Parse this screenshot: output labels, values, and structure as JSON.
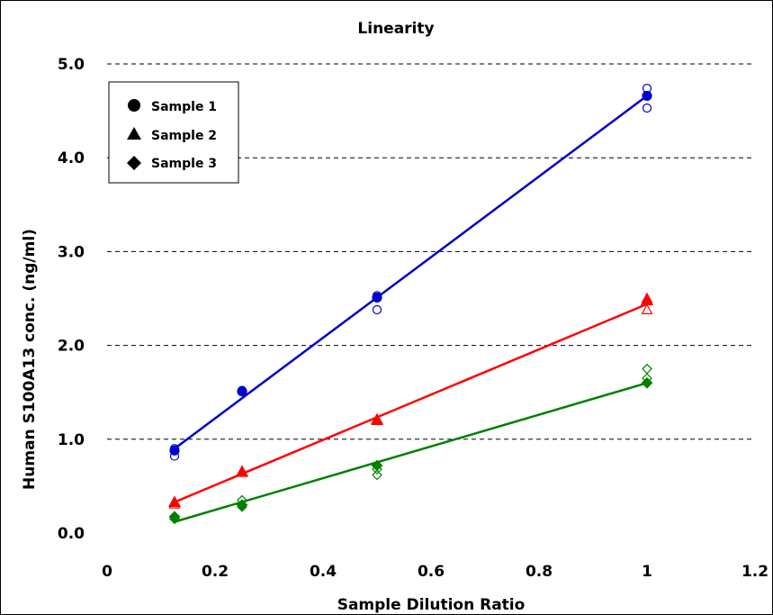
{
  "chart_data": {
    "type": "scatter",
    "title": "Linearity",
    "xlabel": "Sample Dilution Ratio",
    "ylabel": "Human S100A13 conc. (ng/ml)",
    "xlim": [
      0,
      1.2
    ],
    "ylim": [
      0,
      5.0
    ],
    "x_ticks": [
      0,
      0.2,
      0.4,
      0.6,
      0.8,
      1,
      1.2
    ],
    "x_tick_labels": [
      "0",
      "0.2",
      "0.4",
      "0.6",
      "0.8",
      "1",
      "1.2"
    ],
    "y_ticks": [
      0,
      1,
      2,
      3,
      4,
      5
    ],
    "y_tick_labels": [
      "0.0",
      "1.0",
      "2.0",
      "3.0",
      "4.0",
      "5.0"
    ],
    "grid": "horizontal dashed",
    "legend_position": "top-left",
    "series": [
      {
        "name": "Sample 1",
        "marker": "circle",
        "color": "#0000cc",
        "mean": [
          [
            0.125,
            0.88
          ],
          [
            0.25,
            1.51
          ],
          [
            0.5,
            2.51
          ],
          [
            1,
            4.66
          ]
        ],
        "replicates": [
          [
            0.125,
            0.9
          ],
          [
            0.125,
            0.82
          ],
          [
            0.25,
            1.52
          ],
          [
            0.5,
            2.53
          ],
          [
            0.5,
            2.38
          ],
          [
            1,
            4.74
          ],
          [
            1,
            4.53
          ]
        ],
        "fit": [
          [
            0.125,
            0.9
          ],
          [
            1,
            4.66
          ]
        ]
      },
      {
        "name": "Sample 2",
        "marker": "triangle",
        "color": "#ff0000",
        "mean": [
          [
            0.125,
            0.33
          ],
          [
            0.25,
            0.65
          ],
          [
            0.5,
            1.21
          ],
          [
            1,
            2.48
          ]
        ],
        "replicates": [
          [
            0.125,
            0.31
          ],
          [
            0.25,
            0.66
          ],
          [
            0.5,
            1.2
          ],
          [
            1,
            2.5
          ],
          [
            1,
            2.38
          ]
        ],
        "fit": [
          [
            0.125,
            0.33
          ],
          [
            1,
            2.44
          ]
        ]
      },
      {
        "name": "Sample 3",
        "marker": "diamond",
        "color": "#008000",
        "mean": [
          [
            0.125,
            0.17
          ],
          [
            0.25,
            0.3
          ],
          [
            0.5,
            0.72
          ],
          [
            1,
            1.6
          ]
        ],
        "replicates": [
          [
            0.125,
            0.18
          ],
          [
            0.125,
            0.15
          ],
          [
            0.25,
            0.35
          ],
          [
            0.25,
            0.28
          ],
          [
            0.5,
            0.68
          ],
          [
            0.5,
            0.62
          ],
          [
            1,
            1.75
          ],
          [
            1,
            1.65
          ]
        ],
        "fit": [
          [
            0.125,
            0.12
          ],
          [
            1,
            1.6
          ]
        ]
      }
    ]
  }
}
